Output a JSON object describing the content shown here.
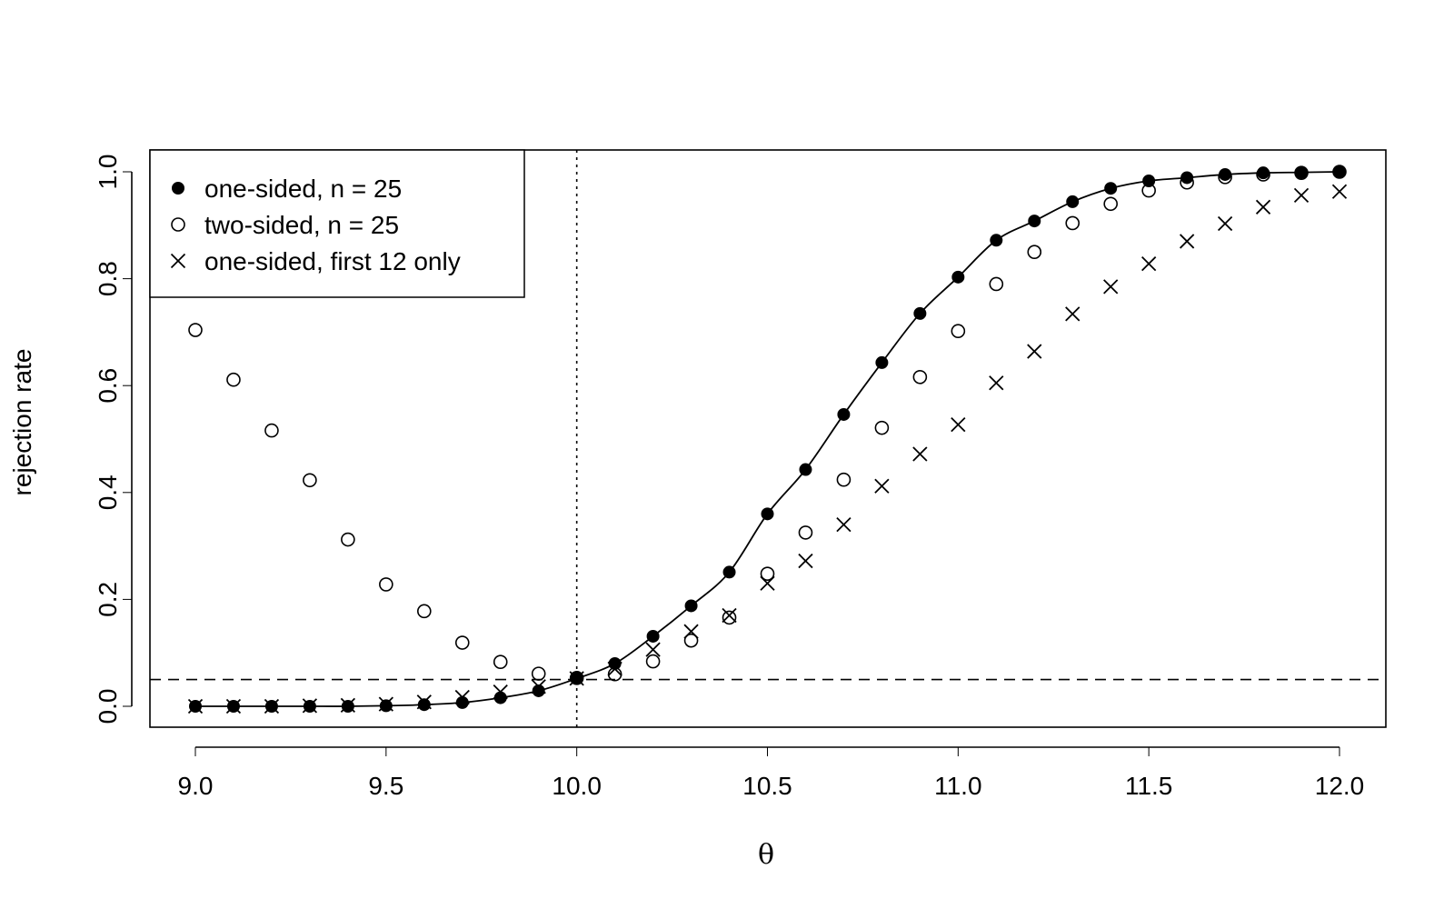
{
  "chart_data": {
    "type": "scatter",
    "title": "",
    "xlabel": "θ",
    "ylabel": "rejection rate",
    "xlim": [
      9.0,
      12.0
    ],
    "ylim": [
      0.0,
      1.0
    ],
    "x_ticks": [
      9.0,
      9.5,
      10.0,
      10.5,
      11.0,
      11.5,
      12.0
    ],
    "x_tick_labels": [
      "9.0",
      "9.5",
      "10.0",
      "10.5",
      "11.0",
      "11.5",
      "12.0"
    ],
    "y_ticks": [
      0.0,
      0.2,
      0.4,
      0.6,
      0.8,
      1.0
    ],
    "y_tick_labels": [
      "0.0",
      "0.2",
      "0.4",
      "0.6",
      "0.8",
      "1.0"
    ],
    "grid": false,
    "legend_position": "top-left",
    "x": [
      9.0,
      9.1,
      9.2,
      9.3,
      9.4,
      9.5,
      9.6,
      9.7,
      9.8,
      9.9,
      10.0,
      10.1,
      10.2,
      10.3,
      10.4,
      10.5,
      10.6,
      10.7,
      10.8,
      10.9,
      11.0,
      11.1,
      11.2,
      11.3,
      11.4,
      11.5,
      11.6,
      11.7,
      11.8,
      11.9,
      12.0
    ],
    "series": [
      {
        "name": "one-sided, n = 25",
        "marker": "filled-circle",
        "values": [
          0.0,
          0.0,
          0.0,
          0.0,
          0.0,
          0.001,
          0.003,
          0.007,
          0.016,
          0.029,
          0.052,
          0.08,
          0.131,
          0.188,
          0.251,
          0.36,
          0.443,
          0.546,
          0.643,
          0.735,
          0.803,
          0.872,
          0.908,
          0.944,
          0.969,
          0.983,
          0.989,
          0.995,
          0.998,
          0.999,
          1.0
        ]
      },
      {
        "name": "two-sided, n = 25",
        "marker": "open-circle",
        "values": [
          0.704,
          0.611,
          0.516,
          0.423,
          0.312,
          0.228,
          0.178,
          0.119,
          0.083,
          0.061,
          0.053,
          0.06,
          0.084,
          0.123,
          0.166,
          0.248,
          0.325,
          0.424,
          0.521,
          0.616,
          0.702,
          0.79,
          0.85,
          0.904,
          0.94,
          0.965,
          0.98,
          0.99,
          0.995,
          0.998,
          1.0
        ]
      },
      {
        "name": "one-sided, first 12 only",
        "marker": "cross",
        "values": [
          0.0,
          0.0,
          0.0,
          0.001,
          0.002,
          0.004,
          0.008,
          0.017,
          0.027,
          0.037,
          0.052,
          0.07,
          0.106,
          0.14,
          0.17,
          0.23,
          0.272,
          0.34,
          0.412,
          0.472,
          0.527,
          0.605,
          0.664,
          0.734,
          0.785,
          0.828,
          0.87,
          0.903,
          0.934,
          0.956,
          0.963
        ]
      }
    ],
    "theoretical_curve": {
      "style": "solid",
      "values": [
        0.0,
        0.0,
        0.0,
        0.0,
        0.0,
        0.001,
        0.003,
        0.007,
        0.016,
        0.029,
        0.052,
        0.08,
        0.131,
        0.188,
        0.251,
        0.36,
        0.443,
        0.546,
        0.643,
        0.735,
        0.803,
        0.872,
        0.908,
        0.944,
        0.969,
        0.983,
        0.989,
        0.995,
        0.998,
        0.999,
        1.0
      ]
    },
    "reference_lines": [
      {
        "orientation": "horizontal",
        "value": 0.05,
        "style": "dashed"
      },
      {
        "orientation": "vertical",
        "value": 10.0,
        "style": "dotted"
      }
    ]
  }
}
